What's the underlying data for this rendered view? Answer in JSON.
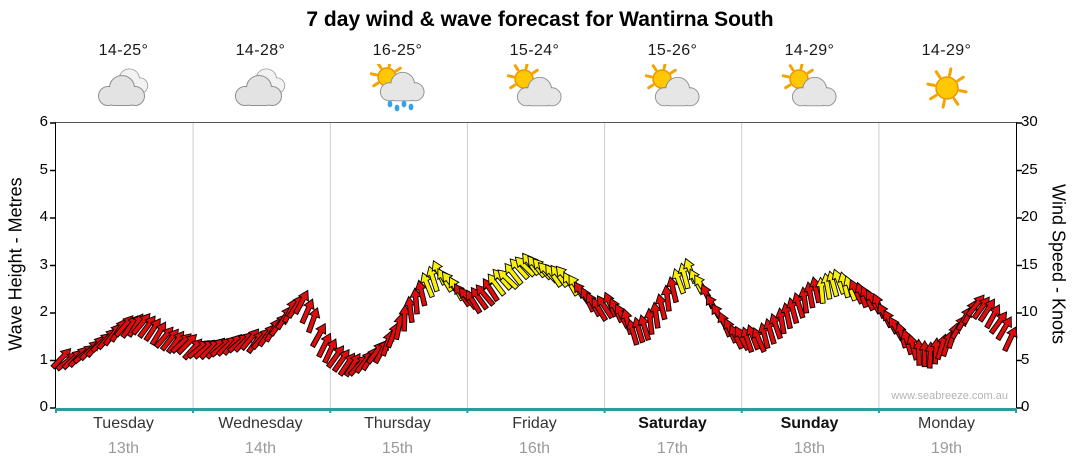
{
  "title": "7 day wind & wave forecast for Wantirna South",
  "watermark": "www.seabreeze.com.au",
  "days": [
    {
      "temp": "14-25°",
      "icon": "cloudy-icon",
      "name": "Tuesday",
      "date": "13th"
    },
    {
      "temp": "14-28°",
      "icon": "cloudy-icon",
      "name": "Wednesday",
      "date": "14th"
    },
    {
      "temp": "16-25°",
      "icon": "sun-shower-icon",
      "name": "Thursday",
      "date": "15th"
    },
    {
      "temp": "15-24°",
      "icon": "partly-cloudy-icon",
      "name": "Friday",
      "date": "16th"
    },
    {
      "temp": "15-26°",
      "icon": "partly-cloudy-icon",
      "name": "Saturday",
      "date": "17th"
    },
    {
      "temp": "14-29°",
      "icon": "partly-cloudy-icon",
      "name": "Sunday",
      "date": "18th"
    },
    {
      "temp": "14-29°",
      "icon": "sunny-icon",
      "name": "Monday",
      "date": "19th"
    }
  ],
  "chart_data": {
    "type": "line",
    "style": "wind-direction-arrows",
    "title": "7 day wind & wave forecast for Wantirna South",
    "categories": [
      "Tuesday",
      "Wednesday",
      "Thursday",
      "Friday",
      "Saturday",
      "Sunday",
      "Monday"
    ],
    "x": {
      "start_hour": 1,
      "step_hours": 2,
      "total_hours": 168
    },
    "left_axis": {
      "label": "Wave Height - Metres",
      "ticks": [
        0,
        1,
        2,
        3,
        4,
        5,
        6
      ],
      "range": [
        0,
        6
      ]
    },
    "right_axis": {
      "label": "Wind Speed - Knots",
      "ticks": [
        0,
        5,
        10,
        15,
        20,
        25,
        30
      ],
      "range": [
        0,
        30
      ]
    },
    "grid": "vertical-day-separators-only",
    "legend": "none",
    "colors": {
      "low_wind": "#df0d0d",
      "high_wind": "#f9ef0c",
      "high_threshold_knots": 12.4,
      "axis_bottom": "#2d9c9c"
    },
    "series": [
      {
        "name": "Wind Speed & Direction",
        "unit": "knots",
        "values": [
          5.0,
          5.3,
          5.8,
          6.5,
          7.2,
          8.0,
          8.8,
          9.0,
          8.3,
          7.4,
          6.8,
          6.5,
          6.4,
          6.3,
          6.4,
          6.6,
          6.8,
          7.2,
          7.8,
          8.8,
          10.2,
          11.0,
          9.0,
          6.8,
          5.5,
          4.6,
          4.4,
          5.0,
          6.2,
          7.8,
          9.5,
          11.2,
          12.8,
          14.0,
          13.4,
          12.0,
          11.2,
          11.8,
          12.8,
          13.8,
          14.8,
          15.2,
          14.6,
          13.8,
          13.6,
          13.0,
          11.5,
          10.4,
          10.8,
          9.5,
          8.2,
          8.6,
          9.8,
          11.5,
          13.2,
          14.2,
          13.0,
          10.8,
          8.8,
          7.4,
          7.0,
          7.4,
          8.2,
          9.2,
          10.2,
          11.2,
          12.2,
          13.0,
          13.4,
          12.6,
          11.8,
          11.0,
          10.0,
          8.5,
          7.0,
          5.8,
          5.4,
          6.2,
          7.8,
          9.5,
          10.8,
          10.2,
          8.8,
          7.5
        ],
        "directions_deg": [
          50,
          48,
          46,
          43,
          40,
          38,
          36,
          35,
          36,
          38,
          41,
          44,
          46,
          47,
          47,
          46,
          44,
          41,
          37,
          33,
          29,
          26,
          25,
          27,
          31,
          36,
          40,
          37,
          28,
          16,
          4,
          -8,
          -18,
          -26,
          -31,
          -33,
          -35,
          -37,
          -39,
          -41,
          -42,
          -41,
          -39,
          -37,
          -35,
          -33,
          -31,
          -29,
          -27,
          -23,
          -17,
          -11,
          -7,
          -11,
          -17,
          -23,
          -27,
          -29,
          -27,
          -23,
          -21,
          -19,
          -17,
          -15,
          -13,
          -11,
          -9,
          -11,
          -15,
          -19,
          -23,
          -27,
          -29,
          -24,
          -16,
          -6,
          5,
          15,
          23,
          29,
          33,
          35,
          33,
          29
        ]
      }
    ]
  }
}
